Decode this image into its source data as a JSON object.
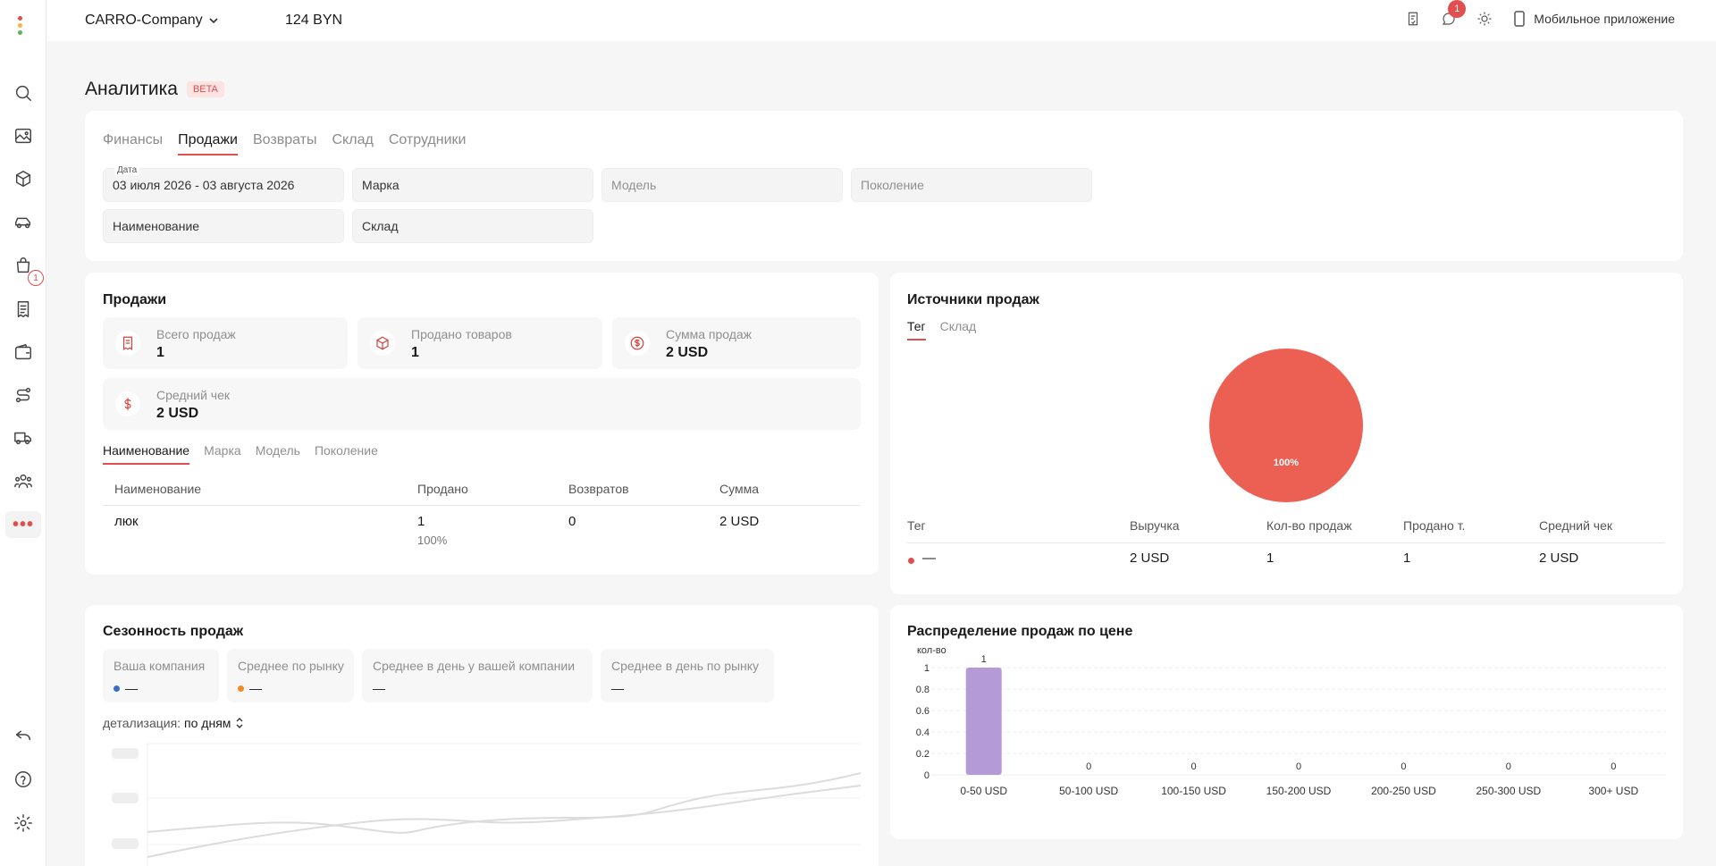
{
  "header": {
    "company": "CARRO-Company",
    "balance": "124 BYN",
    "notifications_count": "1",
    "mobile_app": "Мобильное приложение"
  },
  "sidebar": {
    "cart_badge": "1",
    "more_label": "•••"
  },
  "page": {
    "title": "Аналитика",
    "badge": "BETA"
  },
  "tabs": [
    "Финансы",
    "Продажи",
    "Возвраты",
    "Склад",
    "Сотрудники"
  ],
  "filters": {
    "date_label": "Дата",
    "date_value": "03 июля 2026 - 03 августа 2026",
    "brand_placeholder": "Марка",
    "model_placeholder": "Модель",
    "generation_placeholder": "Поколение",
    "name_placeholder": "Наименование",
    "warehouse_placeholder": "Склад"
  },
  "sales": {
    "title": "Продажи",
    "stats": [
      {
        "label": "Всего продаж",
        "value": "1",
        "icon": "receipt-icon"
      },
      {
        "label": "Продано товаров",
        "value": "1",
        "icon": "box-icon"
      },
      {
        "label": "Сумма продаж",
        "value": "2 USD",
        "icon": "dollar-circle-icon"
      },
      {
        "label": "Средний чек",
        "value": "2 USD",
        "icon": "dollar-icon"
      }
    ],
    "subtabs": [
      "Наименование",
      "Марка",
      "Модель",
      "Поколение"
    ],
    "table": {
      "headers": [
        "Наименование",
        "Продано",
        "Возвратов",
        "Сумма"
      ],
      "rows": [
        {
          "name": "люк",
          "sold": "1",
          "sold_share": "100%",
          "returns": "0",
          "sum": "2 USD"
        }
      ]
    }
  },
  "sources": {
    "title": "Источники продаж",
    "tabs": [
      "Тег",
      "Склад"
    ],
    "pie_label": "100%",
    "table": {
      "headers": [
        "Тег",
        "Выручка",
        "Кол-во продаж",
        "Продано т.",
        "Средний чек"
      ],
      "rows": [
        {
          "tag": "—",
          "revenue": "2 USD",
          "count": "1",
          "sold": "1",
          "avg": "2 USD"
        }
      ]
    }
  },
  "seasonality": {
    "title": "Сезонность продаж",
    "cards": [
      {
        "label": "Ваша компания",
        "value": "—",
        "color": "#3a6fc4"
      },
      {
        "label": "Среднее по рынку",
        "value": "—",
        "color": "#f08a24"
      },
      {
        "label": "Среднее в день у вашей компании",
        "value": "—"
      },
      {
        "label": "Среднее в день по рынку",
        "value": "—"
      }
    ],
    "detail_label": "детализация:",
    "detail_value": "по дням"
  },
  "distribution": {
    "title": "Распределение продаж по цене"
  },
  "chart_data": [
    {
      "type": "pie",
      "title": "",
      "categories": [
        "—"
      ],
      "values": [
        100
      ],
      "labels": [
        "100%"
      ],
      "colors": [
        "#ec5f53"
      ]
    },
    {
      "type": "bar",
      "title": "",
      "ylabel": "кол-во",
      "categories": [
        "0-50 USD",
        "50-100 USD",
        "100-150 USD",
        "150-200 USD",
        "200-250 USD",
        "250-300 USD",
        "300+ USD"
      ],
      "values": [
        1,
        0,
        0,
        0,
        0,
        0,
        0
      ],
      "yticks": [
        "0",
        "0.2",
        "0.4",
        "0.6",
        "0.8",
        "1"
      ],
      "ylim": [
        0,
        1
      ],
      "color": "#b59ad8",
      "grid": true
    }
  ]
}
